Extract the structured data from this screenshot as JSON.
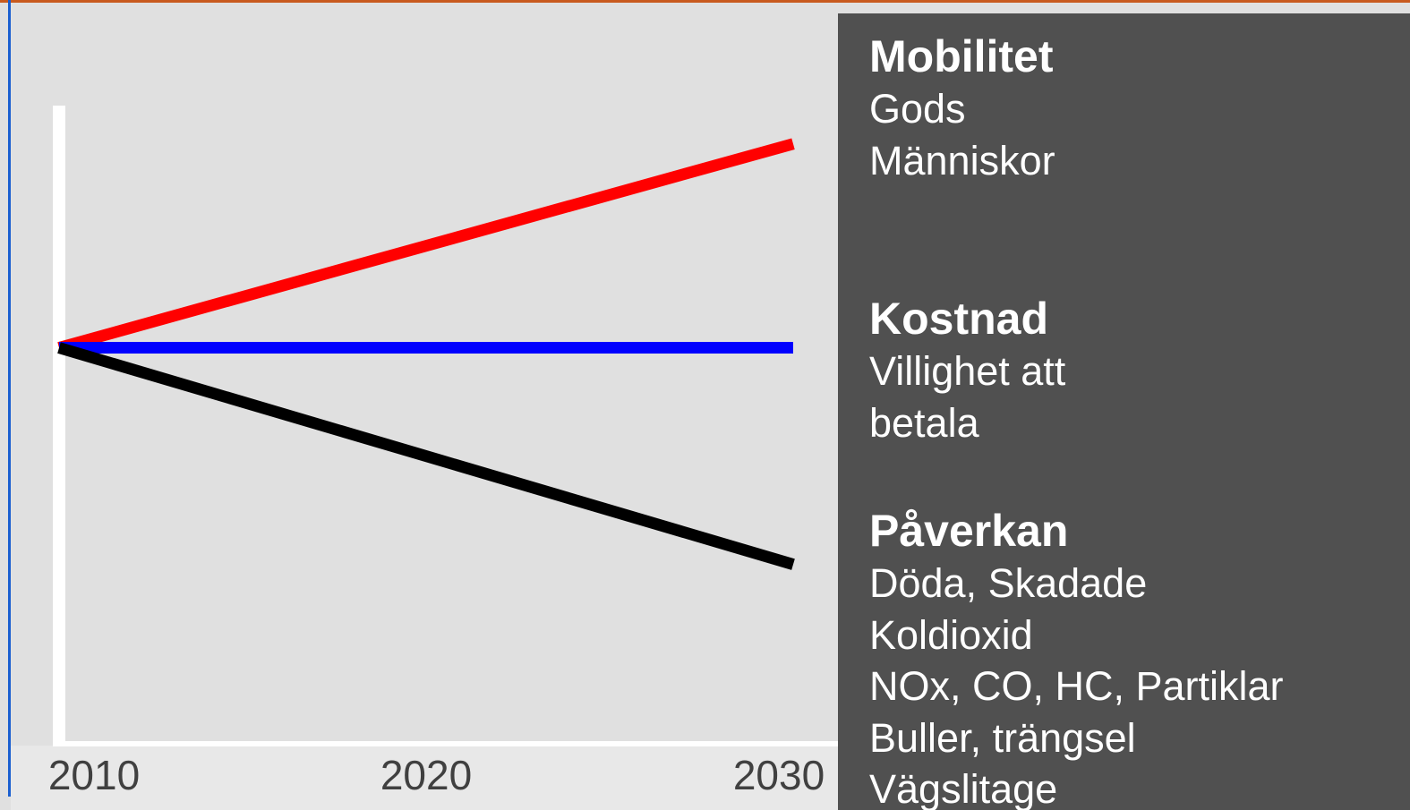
{
  "chart_data": {
    "type": "line",
    "x": [
      2010,
      2030
    ],
    "xlim": [
      2010,
      2030
    ],
    "xticks": [
      2010,
      2020,
      2030
    ],
    "ylim": [
      0,
      100
    ],
    "series": [
      {
        "color": "#ff0000",
        "values": [
          62,
          94
        ]
      },
      {
        "color": "#0000ff",
        "values": [
          62,
          62
        ]
      },
      {
        "color": "#000000",
        "values": [
          62,
          28
        ]
      }
    ]
  },
  "panel": {
    "groups": [
      {
        "heading": "Mobilitet",
        "items": [
          "Gods",
          "Människor"
        ]
      },
      {
        "heading": "Kostnad",
        "items": [
          "Villighet att",
          "betala"
        ]
      },
      {
        "heading": "Påverkan",
        "items": [
          "Döda, Skadade",
          "Koldioxid",
          "NOx, CO, HC, Partiklar",
          "Buller, trängsel",
          "Vägslitage"
        ]
      }
    ]
  }
}
